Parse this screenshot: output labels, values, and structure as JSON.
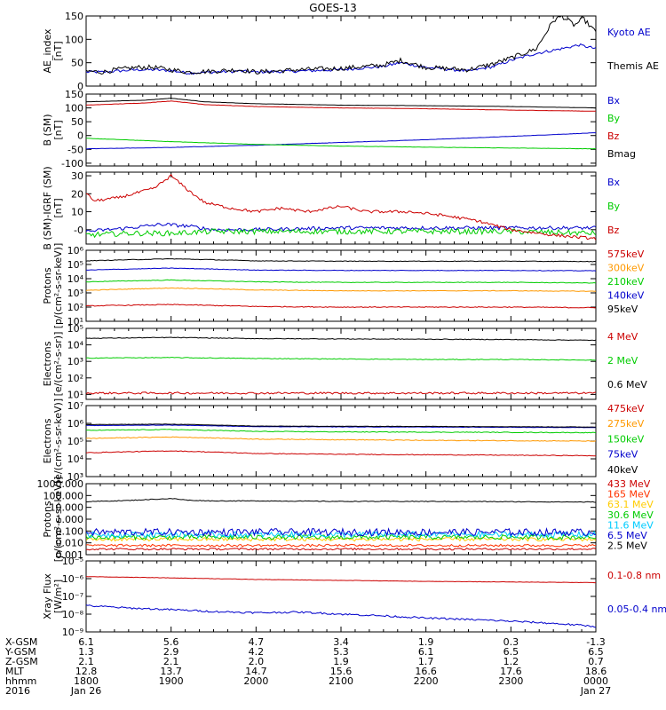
{
  "title": "GOES-13",
  "chart_data": [
    {
      "type": "line",
      "id": "ae",
      "ylabel": "AE_index\n[nT]",
      "ylim": [
        0,
        150
      ],
      "yscale": "linear",
      "yticks": [
        0,
        50,
        100,
        150
      ],
      "yticklabels": [
        "0",
        "50",
        "100",
        "150"
      ],
      "series": [
        {
          "name": "Kyoto AE",
          "color": "#0000cc",
          "jitter": 3,
          "x": [
            0,
            0.2,
            0.35,
            0.6,
            0.8,
            1.0,
            1.2,
            1.5,
            1.8,
            2.0,
            2.5,
            3.0,
            3.5,
            3.7,
            4.0,
            4.5,
            4.8,
            5.0,
            5.3,
            5.6,
            5.8,
            6.0
          ],
          "y": [
            30,
            30,
            32,
            35,
            35,
            33,
            28,
            30,
            32,
            30,
            32,
            35,
            42,
            50,
            40,
            32,
            42,
            55,
            70,
            80,
            88,
            80
          ]
        },
        {
          "name": "Themis AE",
          "color": "#000000",
          "jitter": 5,
          "x": [
            0,
            0.2,
            0.35,
            0.6,
            0.8,
            1.0,
            1.2,
            1.5,
            1.8,
            2.0,
            2.5,
            3.0,
            3.5,
            3.7,
            4.0,
            4.5,
            4.8,
            5.0,
            5.3,
            5.5,
            5.6,
            5.75,
            5.85,
            6.0
          ],
          "y": [
            32,
            30,
            35,
            40,
            40,
            35,
            30,
            32,
            35,
            30,
            35,
            38,
            45,
            55,
            40,
            35,
            48,
            60,
            80,
            140,
            150,
            130,
            145,
            115
          ]
        }
      ]
    },
    {
      "type": "line",
      "id": "bsm",
      "ylabel": "B (SM)\n[nT]",
      "ylim": [
        -110,
        150
      ],
      "yscale": "linear",
      "yticks": [
        -100,
        -50,
        0,
        50,
        100,
        150
      ],
      "yticklabels": [
        "-100",
        "-50",
        "0",
        "50",
        "100",
        "150"
      ],
      "series": [
        {
          "name": "Bx",
          "color": "#0000cc",
          "jitter": 0.5,
          "x": [
            0,
            1,
            2,
            3,
            4,
            5,
            6
          ],
          "y": [
            -48,
            -43,
            -35,
            -25,
            -15,
            -3,
            10
          ]
        },
        {
          "name": "By",
          "color": "#00cc00",
          "jitter": 0.5,
          "x": [
            0,
            1,
            2,
            3,
            4,
            5,
            6
          ],
          "y": [
            -10,
            -22,
            -32,
            -38,
            -42,
            -45,
            -48
          ]
        },
        {
          "name": "Bz",
          "color": "#cc0000",
          "jitter": 0.5,
          "x": [
            0,
            0.7,
            1.0,
            1.4,
            2,
            3,
            4,
            5,
            6
          ],
          "y": [
            110,
            118,
            125,
            112,
            105,
            100,
            97,
            92,
            88
          ]
        },
        {
          "name": "Bmag",
          "color": "#000000",
          "jitter": 0.3,
          "x": [
            0,
            0.7,
            1.0,
            1.4,
            2,
            3,
            4,
            5,
            6
          ],
          "y": [
            122,
            128,
            135,
            122,
            115,
            110,
            108,
            105,
            100
          ]
        }
      ]
    },
    {
      "type": "line",
      "id": "bigrf",
      "ylabel": "B (SM)-IGRF (SM)\n[nT]",
      "ylim": [
        -8,
        32
      ],
      "yscale": "linear",
      "yticks": [
        0,
        10,
        20,
        30
      ],
      "yticklabels": [
        "-0",
        "10",
        "20",
        "30"
      ],
      "series": [
        {
          "name": "Bx",
          "color": "#0000cc",
          "jitter": 1.0,
          "x": [
            0,
            0.5,
            0.9,
            1.2,
            1.5,
            2,
            3,
            4,
            5,
            6
          ],
          "y": [
            -1,
            1,
            3,
            2,
            0,
            0,
            1,
            1,
            1,
            1
          ]
        },
        {
          "name": "By",
          "color": "#00cc00",
          "jitter": 1.5,
          "x": [
            0,
            0.5,
            1,
            1.5,
            2,
            3,
            4,
            5,
            6
          ],
          "y": [
            -3,
            -2,
            -2,
            -1,
            -1,
            -1,
            -1,
            -1,
            -2
          ]
        },
        {
          "name": "Bz",
          "color": "#cc0000",
          "jitter": 0.8,
          "x": [
            0,
            0.1,
            0.4,
            0.8,
            1.0,
            1.2,
            1.4,
            1.7,
            2.0,
            2.3,
            2.6,
            3.0,
            3.3,
            3.8,
            4.2,
            4.6,
            5.0,
            5.5,
            6.0
          ],
          "y": [
            20,
            16,
            18,
            23,
            30,
            22,
            15,
            12,
            10,
            12,
            10,
            13,
            10,
            10,
            8,
            5,
            0,
            -3,
            -5
          ]
        }
      ]
    },
    {
      "type": "line",
      "id": "protons1",
      "ylabel": "Protons\n[p/(cm²-s-sr-keV)]",
      "ylim": [
        10,
        1000000
      ],
      "yscale": "log",
      "yticks": [
        10,
        100,
        1000,
        10000,
        100000,
        1000000
      ],
      "yticklabels": [
        "10¹",
        "10²",
        "10³",
        "10⁴",
        "10⁵",
        "10⁶"
      ],
      "series": [
        {
          "name": "575keV",
          "color": "#cc0000",
          "jitter": 0.03,
          "x": [
            0,
            1,
            2,
            3,
            4,
            5,
            6
          ],
          "y": [
            120,
            150,
            110,
            100,
            100,
            100,
            90
          ]
        },
        {
          "name": "300keV",
          "color": "#ff9900",
          "jitter": 0.02,
          "x": [
            0,
            1,
            2,
            3,
            4,
            5,
            6
          ],
          "y": [
            1500,
            2200,
            1600,
            1400,
            1400,
            1400,
            1300
          ]
        },
        {
          "name": "210keV",
          "color": "#00cc00",
          "jitter": 0.02,
          "x": [
            0,
            1,
            2,
            3,
            4,
            5,
            6
          ],
          "y": [
            6000,
            8000,
            6000,
            5500,
            5500,
            5500,
            5000
          ]
        },
        {
          "name": "140keV",
          "color": "#0000cc",
          "jitter": 0.02,
          "x": [
            0,
            1,
            2,
            3,
            4,
            5,
            6
          ],
          "y": [
            40000,
            55000,
            40000,
            38000,
            38000,
            38000,
            36000
          ]
        },
        {
          "name": "95keV",
          "color": "#000000",
          "jitter": 0.02,
          "x": [
            0,
            1,
            2,
            3,
            4,
            5,
            6
          ],
          "y": [
            180000,
            250000,
            180000,
            170000,
            170000,
            170000,
            160000
          ]
        }
      ]
    },
    {
      "type": "line",
      "id": "electrons1",
      "ylabel": "Electrons\n[e/(cm²-s-sr)]",
      "ylim": [
        5,
        100000
      ],
      "yscale": "log",
      "yticks": [
        10,
        100,
        1000,
        10000,
        100000
      ],
      "yticklabels": [
        "10¹",
        "10²",
        "10³",
        "10⁴",
        "10⁵"
      ],
      "series": [
        {
          "name": "4 MeV",
          "color": "#cc0000",
          "jitter": 0.06,
          "x": [
            0,
            1,
            2,
            3,
            4,
            5,
            6
          ],
          "y": [
            12,
            12,
            12,
            12,
            12,
            12,
            12
          ]
        },
        {
          "name": "2 MeV",
          "color": "#00cc00",
          "jitter": 0.02,
          "x": [
            0,
            1,
            2,
            3,
            4,
            5,
            6
          ],
          "y": [
            1600,
            1700,
            1500,
            1400,
            1300,
            1300,
            1200
          ]
        },
        {
          "name": "0.6 MeV",
          "color": "#000000",
          "jitter": 0.02,
          "x": [
            0,
            1,
            2,
            3,
            4,
            5,
            6
          ],
          "y": [
            25000,
            28000,
            24000,
            23000,
            22000,
            21000,
            19000
          ]
        }
      ]
    },
    {
      "type": "line",
      "id": "electrons2",
      "ylabel": "Electrons\n[e/(cm²-s-sr-keV)]",
      "ylim": [
        1000,
        10000000
      ],
      "yscale": "log",
      "yticks": [
        1000,
        10000,
        100000,
        1000000,
        10000000
      ],
      "yticklabels": [
        "10³",
        "10⁴",
        "10⁵",
        "10⁶",
        "10⁷"
      ],
      "series": [
        {
          "name": "475keV",
          "color": "#cc0000",
          "jitter": 0.02,
          "x": [
            0,
            1,
            2,
            3,
            4,
            5,
            6
          ],
          "y": [
            22000,
            28000,
            20000,
            18000,
            17000,
            16000,
            15000
          ]
        },
        {
          "name": "275keV",
          "color": "#ff9900",
          "jitter": 0.02,
          "x": [
            0,
            1,
            2,
            3,
            4,
            5,
            6
          ],
          "y": [
            140000,
            170000,
            130000,
            120000,
            110000,
            105000,
            100000
          ]
        },
        {
          "name": "150keV",
          "color": "#00cc00",
          "jitter": 0.02,
          "x": [
            0,
            1,
            2,
            3,
            4,
            5,
            6
          ],
          "y": [
            400000,
            450000,
            350000,
            330000,
            320000,
            310000,
            300000
          ]
        },
        {
          "name": "75keV",
          "color": "#0000cc",
          "jitter": 0.01,
          "x": [
            0,
            1,
            2,
            3,
            4,
            5,
            6
          ],
          "y": [
            750000,
            800000,
            650000,
            630000,
            620000,
            600000,
            580000
          ]
        },
        {
          "name": "40keV",
          "color": "#000000",
          "jitter": 0.01,
          "x": [
            0,
            1,
            2,
            3,
            4,
            5,
            6
          ],
          "y": [
            850000,
            900000,
            700000,
            680000,
            670000,
            650000,
            620000
          ]
        }
      ]
    },
    {
      "type": "line",
      "id": "protons2",
      "ylabel": "Protons\n[p/(cm²-s-sr-keV)]",
      "ylim": [
        0.001,
        1000
      ],
      "yscale": "log",
      "yticks": [
        0.001,
        0.01,
        0.1,
        1,
        10,
        100,
        1000
      ],
      "yticklabels": [
        "0.001",
        "0.010",
        "0.100",
        "1.000",
        "10.000",
        "100.000",
        "1000.000"
      ],
      "series": [
        {
          "name": "433 MeV",
          "color": "#cc0000",
          "jitter": 0.08,
          "x": [
            0,
            1,
            2,
            3,
            4,
            5,
            6
          ],
          "y": [
            0.003,
            0.003,
            0.003,
            0.003,
            0.003,
            0.003,
            0.003
          ]
        },
        {
          "name": "165 MeV",
          "color": "#ff3300",
          "jitter": 0.1,
          "x": [
            0,
            1,
            2,
            3,
            4,
            5,
            6
          ],
          "y": [
            0.006,
            0.006,
            0.006,
            0.006,
            0.006,
            0.006,
            0.006
          ]
        },
        {
          "name": "63.1 MeV",
          "color": "#ffcc00",
          "jitter": 0.15,
          "x": [
            0,
            1,
            2,
            3,
            4,
            5,
            6
          ],
          "y": [
            0.02,
            0.02,
            0.02,
            0.02,
            0.02,
            0.02,
            0.02
          ]
        },
        {
          "name": "30.6 MeV",
          "color": "#00cc00",
          "jitter": 0.2,
          "x": [
            0,
            1,
            2,
            3,
            4,
            5,
            6
          ],
          "y": [
            0.03,
            0.03,
            0.03,
            0.03,
            0.03,
            0.03,
            0.03
          ]
        },
        {
          "name": "11.6 MeV",
          "color": "#00ccff",
          "jitter": 0.25,
          "x": [
            0,
            1,
            2,
            3,
            4,
            5,
            6
          ],
          "y": [
            0.05,
            0.05,
            0.05,
            0.05,
            0.05,
            0.05,
            0.05
          ]
        },
        {
          "name": "6.5 MeV",
          "color": "#0000cc",
          "jitter": 0.3,
          "x": [
            0,
            1,
            2,
            3,
            4,
            5,
            6
          ],
          "y": [
            0.08,
            0.08,
            0.08,
            0.08,
            0.08,
            0.08,
            0.08
          ]
        },
        {
          "name": "2.5 MeV",
          "color": "#000000",
          "jitter": 0.03,
          "x": [
            0,
            0.5,
            1.0,
            1.2,
            1.5,
            2,
            3,
            4,
            5,
            6
          ],
          "y": [
            30,
            38,
            55,
            40,
            35,
            35,
            32,
            32,
            30,
            28
          ]
        }
      ]
    },
    {
      "type": "line",
      "id": "xray",
      "ylabel": "Xray Flux\n[W/m²]",
      "ylim": [
        1e-09,
        1e-05
      ],
      "yscale": "log",
      "yticks": [
        1e-09,
        1e-08,
        1e-07,
        1e-06,
        1e-05
      ],
      "yticklabels": [
        "10⁻⁹",
        "10⁻⁸",
        "10⁻⁷",
        "10⁻⁶",
        "10⁻⁵"
      ],
      "series": [
        {
          "name": "0.1-0.8 nm",
          "color": "#cc0000",
          "jitter": 0.01,
          "x": [
            0,
            1,
            2,
            3,
            4,
            5,
            6
          ],
          "y": [
            1.3e-06,
            1.1e-06,
            9e-07,
            8e-07,
            7e-07,
            6.5e-07,
            6e-07
          ]
        },
        {
          "name": "0.05-0.4 nm",
          "color": "#0000cc",
          "jitter": 0.05,
          "x": [
            0,
            0.5,
            1,
            1.5,
            2,
            2.5,
            3,
            3.5,
            4,
            4.5,
            5,
            5.5,
            6
          ],
          "y": [
            3e-08,
            2.2e-08,
            1.8e-08,
            1.4e-08,
            1.2e-08,
            1.3e-08,
            1e-08,
            8e-09,
            6e-09,
            5e-09,
            4e-09,
            3e-09,
            2e-09
          ]
        }
      ]
    }
  ],
  "xaxis": {
    "row_labels": [
      "X-GSM",
      "Y-GSM",
      "Z-GSM",
      "MLT",
      "hhmm",
      "2016"
    ],
    "columns": [
      [
        "6.1",
        "1.3",
        "2.1",
        "12.8",
        "1800",
        "Jan 26"
      ],
      [
        "5.6",
        "2.9",
        "2.1",
        "13.7",
        "1900",
        ""
      ],
      [
        "4.7",
        "4.2",
        "2.0",
        "14.7",
        "2000",
        ""
      ],
      [
        "3.4",
        "5.3",
        "1.9",
        "15.6",
        "2100",
        ""
      ],
      [
        "1.9",
        "6.1",
        "1.7",
        "16.6",
        "2200",
        ""
      ],
      [
        "0.3",
        "6.5",
        "1.2",
        "17.6",
        "2300",
        ""
      ],
      [
        "-1.3",
        "6.5",
        "0.7",
        "18.6",
        "0000",
        "Jan 27"
      ]
    ]
  }
}
